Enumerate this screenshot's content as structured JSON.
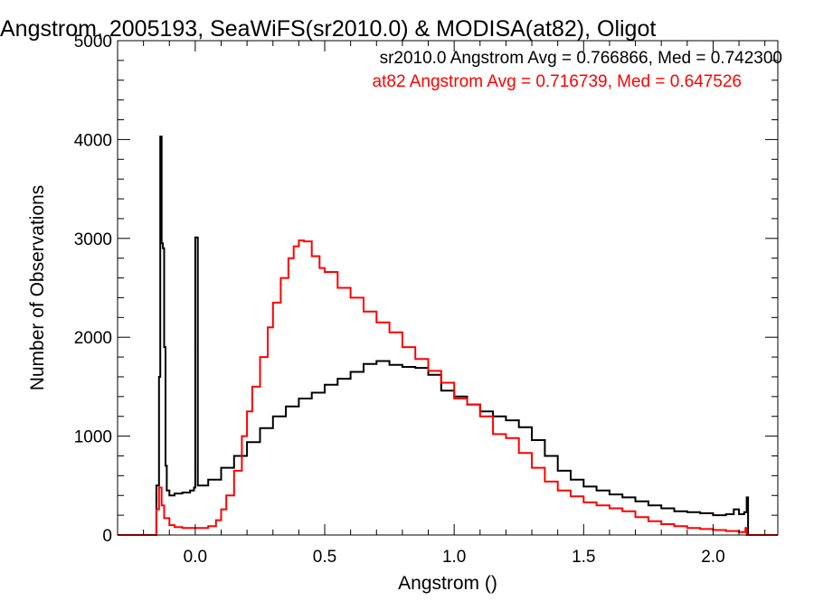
{
  "chart_data": {
    "type": "line",
    "title": "Angstrom, 2005193, SeaWiFS(sr2010.0) & MODISA(at82), Oligot",
    "xlabel": "Angstrom ()",
    "ylabel": "Number of Observations",
    "xlim": [
      -0.3,
      2.25
    ],
    "ylim": [
      0,
      5000
    ],
    "x_ticks": [
      0.0,
      0.5,
      1.0,
      1.5,
      2.0
    ],
    "x_tick_labels": [
      "0.0",
      "0.5",
      "1.0",
      "1.5",
      "2.0"
    ],
    "y_ticks": [
      0,
      1000,
      2000,
      3000,
      4000,
      5000
    ],
    "y_tick_labels": [
      "0",
      "1000",
      "2000",
      "3000",
      "4000",
      "5000"
    ],
    "legend_placement": "top-right",
    "grid": false,
    "step": true,
    "annotations": [
      {
        "text": "sr2010.0 Angstrom Avg = 0.766866, Med = 0.742300",
        "color": "#000000"
      },
      {
        "text": "at82 Angstrom Avg = 0.716739, Med = 0.647526",
        "color": "#ff0000"
      }
    ],
    "series": [
      {
        "color": "#000000",
        "points": [
          [
            -0.3,
            0
          ],
          [
            -0.155,
            0
          ],
          [
            -0.15,
            500
          ],
          [
            -0.14,
            1600
          ],
          [
            -0.135,
            4030
          ],
          [
            -0.13,
            2950
          ],
          [
            -0.125,
            2900
          ],
          [
            -0.12,
            1900
          ],
          [
            -0.115,
            700
          ],
          [
            -0.11,
            450
          ],
          [
            -0.1,
            400
          ],
          [
            -0.08,
            420
          ],
          [
            -0.05,
            430
          ],
          [
            -0.02,
            450
          ],
          [
            -0.005,
            480
          ],
          [
            0.0,
            3010
          ],
          [
            0.005,
            3010
          ],
          [
            0.01,
            500
          ],
          [
            0.05,
            560
          ],
          [
            0.1,
            680
          ],
          [
            0.15,
            800
          ],
          [
            0.2,
            940
          ],
          [
            0.25,
            1080
          ],
          [
            0.3,
            1200
          ],
          [
            0.35,
            1300
          ],
          [
            0.4,
            1380
          ],
          [
            0.45,
            1440
          ],
          [
            0.5,
            1520
          ],
          [
            0.55,
            1580
          ],
          [
            0.6,
            1650
          ],
          [
            0.65,
            1730
          ],
          [
            0.7,
            1760
          ],
          [
            0.75,
            1720
          ],
          [
            0.8,
            1700
          ],
          [
            0.85,
            1690
          ],
          [
            0.9,
            1620
          ],
          [
            0.95,
            1460
          ],
          [
            1.0,
            1400
          ],
          [
            1.05,
            1320
          ],
          [
            1.1,
            1250
          ],
          [
            1.15,
            1200
          ],
          [
            1.2,
            1160
          ],
          [
            1.25,
            1090
          ],
          [
            1.3,
            960
          ],
          [
            1.35,
            800
          ],
          [
            1.4,
            650
          ],
          [
            1.45,
            560
          ],
          [
            1.5,
            490
          ],
          [
            1.55,
            450
          ],
          [
            1.6,
            410
          ],
          [
            1.65,
            380
          ],
          [
            1.7,
            340
          ],
          [
            1.75,
            300
          ],
          [
            1.8,
            270
          ],
          [
            1.85,
            240
          ],
          [
            1.9,
            230
          ],
          [
            1.95,
            220
          ],
          [
            2.0,
            200
          ],
          [
            2.05,
            210
          ],
          [
            2.08,
            260
          ],
          [
            2.1,
            210
          ],
          [
            2.12,
            230
          ],
          [
            2.13,
            380
          ],
          [
            2.135,
            0
          ],
          [
            2.25,
            0
          ]
        ]
      },
      {
        "color": "#ff0000",
        "points": [
          [
            -0.3,
            0
          ],
          [
            -0.155,
            0
          ],
          [
            -0.15,
            260
          ],
          [
            -0.14,
            480
          ],
          [
            -0.13,
            300
          ],
          [
            -0.12,
            170
          ],
          [
            -0.1,
            100
          ],
          [
            -0.08,
            80
          ],
          [
            -0.05,
            70
          ],
          [
            0.0,
            70
          ],
          [
            0.05,
            90
          ],
          [
            0.08,
            150
          ],
          [
            0.1,
            260
          ],
          [
            0.12,
            400
          ],
          [
            0.15,
            650
          ],
          [
            0.18,
            1000
          ],
          [
            0.2,
            1250
          ],
          [
            0.22,
            1500
          ],
          [
            0.25,
            1800
          ],
          [
            0.28,
            2100
          ],
          [
            0.3,
            2350
          ],
          [
            0.33,
            2600
          ],
          [
            0.36,
            2800
          ],
          [
            0.38,
            2920
          ],
          [
            0.4,
            2980
          ],
          [
            0.42,
            2970
          ],
          [
            0.45,
            2820
          ],
          [
            0.48,
            2700
          ],
          [
            0.5,
            2660
          ],
          [
            0.55,
            2500
          ],
          [
            0.6,
            2400
          ],
          [
            0.65,
            2260
          ],
          [
            0.7,
            2150
          ],
          [
            0.75,
            2050
          ],
          [
            0.8,
            1900
          ],
          [
            0.85,
            1780
          ],
          [
            0.9,
            1660
          ],
          [
            0.95,
            1540
          ],
          [
            1.0,
            1380
          ],
          [
            1.05,
            1320
          ],
          [
            1.1,
            1200
          ],
          [
            1.15,
            1020
          ],
          [
            1.2,
            980
          ],
          [
            1.25,
            830
          ],
          [
            1.3,
            680
          ],
          [
            1.35,
            540
          ],
          [
            1.4,
            450
          ],
          [
            1.45,
            390
          ],
          [
            1.5,
            330
          ],
          [
            1.55,
            300
          ],
          [
            1.6,
            270
          ],
          [
            1.65,
            240
          ],
          [
            1.7,
            180
          ],
          [
            1.75,
            140
          ],
          [
            1.8,
            110
          ],
          [
            1.85,
            90
          ],
          [
            1.9,
            70
          ],
          [
            1.95,
            60
          ],
          [
            2.0,
            50
          ],
          [
            2.05,
            40
          ],
          [
            2.1,
            30
          ],
          [
            2.125,
            70
          ],
          [
            2.13,
            0
          ],
          [
            2.25,
            0
          ]
        ]
      }
    ]
  }
}
